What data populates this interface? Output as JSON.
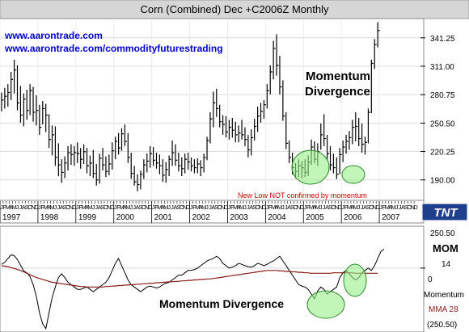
{
  "chart_data": [
    {
      "type": "ohlc",
      "title": "Corn (Combined) Dec +C2006Z Monthly",
      "xlabel": "",
      "ylabel": "",
      "x_year_labels": [
        "1997",
        "1998",
        "1999",
        "2000",
        "2001",
        "2002",
        "2003",
        "2004",
        "2005",
        "2006",
        "2007"
      ],
      "month_initials": [
        "J",
        "F",
        "M",
        "A",
        "M",
        "J",
        "J",
        "A",
        "S",
        "O",
        "N",
        "D"
      ],
      "ylim": [
        170,
        360
      ],
      "y_ticks": [
        "341.25",
        "311.00",
        "280.75",
        "250.50",
        "220.25",
        "190.00"
      ],
      "grid": true,
      "watermarks": [
        "www.aarontrade.com",
        "www.aarontrade.com/commodityfuturestrading"
      ],
      "annotations": {
        "divergence": [
          "Momentum",
          "Divergence"
        ],
        "new_low_note": "New Low NOT confirmed by momentum"
      },
      "logo": "TNT",
      "bars": [
        {
          "x": "1997-01",
          "h": 283,
          "l": 263,
          "c": 275
        },
        {
          "x": "1997-02",
          "h": 288,
          "l": 266,
          "c": 279
        },
        {
          "x": "1997-03",
          "h": 292,
          "l": 268,
          "c": 283
        },
        {
          "x": "1997-04",
          "h": 305,
          "l": 275,
          "c": 297
        },
        {
          "x": "1997-05",
          "h": 318,
          "l": 282,
          "c": 307
        },
        {
          "x": "1997-06",
          "h": 312,
          "l": 264,
          "c": 272
        },
        {
          "x": "1997-07",
          "h": 290,
          "l": 251,
          "c": 259
        },
        {
          "x": "1997-08",
          "h": 282,
          "l": 247,
          "c": 276
        },
        {
          "x": "1997-09",
          "h": 286,
          "l": 254,
          "c": 264
        },
        {
          "x": "1997-10",
          "h": 292,
          "l": 259,
          "c": 285
        },
        {
          "x": "1997-11",
          "h": 289,
          "l": 252,
          "c": 262
        },
        {
          "x": "1997-12",
          "h": 280,
          "l": 248,
          "c": 264
        },
        {
          "x": "1998-01",
          "h": 270,
          "l": 238,
          "c": 246
        },
        {
          "x": "1998-02",
          "h": 274,
          "l": 249,
          "c": 266
        },
        {
          "x": "1998-03",
          "h": 271,
          "l": 241,
          "c": 259
        },
        {
          "x": "1998-04",
          "h": 260,
          "l": 224,
          "c": 233
        },
        {
          "x": "1998-05",
          "h": 248,
          "l": 216,
          "c": 238
        },
        {
          "x": "1998-06",
          "h": 247,
          "l": 205,
          "c": 214
        },
        {
          "x": "1998-07",
          "h": 229,
          "l": 194,
          "c": 206
        },
        {
          "x": "1998-08",
          "h": 212,
          "l": 187,
          "c": 198
        },
        {
          "x": "1998-09",
          "h": 215,
          "l": 192,
          "c": 208
        },
        {
          "x": "1998-10",
          "h": 226,
          "l": 200,
          "c": 219
        },
        {
          "x": "1998-11",
          "h": 228,
          "l": 206,
          "c": 217
        },
        {
          "x": "1998-12",
          "h": 226,
          "l": 205,
          "c": 219
        },
        {
          "x": "1999-01",
          "h": 230,
          "l": 208,
          "c": 218
        },
        {
          "x": "1999-02",
          "h": 224,
          "l": 202,
          "c": 212
        },
        {
          "x": "1999-03",
          "h": 228,
          "l": 207,
          "c": 220
        },
        {
          "x": "1999-04",
          "h": 224,
          "l": 197,
          "c": 205
        },
        {
          "x": "1999-05",
          "h": 216,
          "l": 194,
          "c": 208
        },
        {
          "x": "1999-06",
          "h": 222,
          "l": 192,
          "c": 197
        },
        {
          "x": "1999-07",
          "h": 207,
          "l": 184,
          "c": 190
        },
        {
          "x": "1999-08",
          "h": 218,
          "l": 186,
          "c": 213
        },
        {
          "x": "1999-09",
          "h": 224,
          "l": 200,
          "c": 206
        },
        {
          "x": "1999-10",
          "h": 215,
          "l": 193,
          "c": 199
        },
        {
          "x": "1999-11",
          "h": 217,
          "l": 195,
          "c": 207
        },
        {
          "x": "1999-12",
          "h": 230,
          "l": 201,
          "c": 221
        },
        {
          "x": "2000-01",
          "h": 236,
          "l": 212,
          "c": 231
        },
        {
          "x": "2000-02",
          "h": 240,
          "l": 217,
          "c": 224
        },
        {
          "x": "2000-03",
          "h": 245,
          "l": 221,
          "c": 239
        },
        {
          "x": "2000-04",
          "h": 249,
          "l": 226,
          "c": 231
        },
        {
          "x": "2000-05",
          "h": 240,
          "l": 208,
          "c": 214
        },
        {
          "x": "2000-06",
          "h": 219,
          "l": 191,
          "c": 197
        },
        {
          "x": "2000-07",
          "h": 205,
          "l": 184,
          "c": 188
        },
        {
          "x": "2000-08",
          "h": 196,
          "l": 178,
          "c": 185
        },
        {
          "x": "2000-09",
          "h": 200,
          "l": 180,
          "c": 196
        },
        {
          "x": "2000-10",
          "h": 212,
          "l": 191,
          "c": 206
        },
        {
          "x": "2000-11",
          "h": 218,
          "l": 198,
          "c": 210
        },
        {
          "x": "2000-12",
          "h": 226,
          "l": 203,
          "c": 218
        },
        {
          "x": "2001-01",
          "h": 225,
          "l": 205,
          "c": 211
        },
        {
          "x": "2001-02",
          "h": 219,
          "l": 202,
          "c": 208
        },
        {
          "x": "2001-03",
          "h": 217,
          "l": 196,
          "c": 205
        },
        {
          "x": "2001-04",
          "h": 212,
          "l": 188,
          "c": 195
        },
        {
          "x": "2001-05",
          "h": 209,
          "l": 187,
          "c": 201
        },
        {
          "x": "2001-06",
          "h": 216,
          "l": 194,
          "c": 212
        },
        {
          "x": "2001-07",
          "h": 232,
          "l": 205,
          "c": 219
        },
        {
          "x": "2001-08",
          "h": 228,
          "l": 205,
          "c": 211
        },
        {
          "x": "2001-09",
          "h": 219,
          "l": 199,
          "c": 205
        },
        {
          "x": "2001-10",
          "h": 214,
          "l": 194,
          "c": 202
        },
        {
          "x": "2001-11",
          "h": 218,
          "l": 197,
          "c": 212
        },
        {
          "x": "2001-12",
          "h": 219,
          "l": 201,
          "c": 209
        },
        {
          "x": "2002-01",
          "h": 214,
          "l": 199,
          "c": 205
        },
        {
          "x": "2002-02",
          "h": 212,
          "l": 197,
          "c": 203
        },
        {
          "x": "2002-03",
          "h": 213,
          "l": 197,
          "c": 207
        },
        {
          "x": "2002-04",
          "h": 211,
          "l": 194,
          "c": 203
        },
        {
          "x": "2002-05",
          "h": 218,
          "l": 198,
          "c": 214
        },
        {
          "x": "2002-06",
          "h": 236,
          "l": 211,
          "c": 232
        },
        {
          "x": "2002-07",
          "h": 262,
          "l": 229,
          "c": 255
        },
        {
          "x": "2002-08",
          "h": 284,
          "l": 246,
          "c": 272
        },
        {
          "x": "2002-09",
          "h": 287,
          "l": 257,
          "c": 266
        },
        {
          "x": "2002-10",
          "h": 270,
          "l": 246,
          "c": 252
        },
        {
          "x": "2002-11",
          "h": 259,
          "l": 238,
          "c": 249
        },
        {
          "x": "2002-12",
          "h": 258,
          "l": 235,
          "c": 241
        },
        {
          "x": "2003-01",
          "h": 254,
          "l": 233,
          "c": 246
        },
        {
          "x": "2003-02",
          "h": 256,
          "l": 235,
          "c": 243
        },
        {
          "x": "2003-03",
          "h": 252,
          "l": 230,
          "c": 238
        },
        {
          "x": "2003-04",
          "h": 248,
          "l": 230,
          "c": 240
        },
        {
          "x": "2003-05",
          "h": 254,
          "l": 233,
          "c": 238
        },
        {
          "x": "2003-06",
          "h": 246,
          "l": 226,
          "c": 233
        },
        {
          "x": "2003-07",
          "h": 238,
          "l": 214,
          "c": 222
        },
        {
          "x": "2003-08",
          "h": 244,
          "l": 216,
          "c": 235
        },
        {
          "x": "2003-09",
          "h": 255,
          "l": 232,
          "c": 247
        },
        {
          "x": "2003-10",
          "h": 268,
          "l": 241,
          "c": 258
        },
        {
          "x": "2003-11",
          "h": 272,
          "l": 251,
          "c": 263
        },
        {
          "x": "2003-12",
          "h": 275,
          "l": 255,
          "c": 270
        },
        {
          "x": "2004-01",
          "h": 292,
          "l": 266,
          "c": 285
        },
        {
          "x": "2004-02",
          "h": 312,
          "l": 281,
          "c": 305
        },
        {
          "x": "2004-03",
          "h": 338,
          "l": 297,
          "c": 330
        },
        {
          "x": "2004-04",
          "h": 345,
          "l": 301,
          "c": 312
        },
        {
          "x": "2004-05",
          "h": 322,
          "l": 281,
          "c": 289
        },
        {
          "x": "2004-06",
          "h": 296,
          "l": 253,
          "c": 258
        },
        {
          "x": "2004-07",
          "h": 262,
          "l": 223,
          "c": 229
        },
        {
          "x": "2004-08",
          "h": 232,
          "l": 208,
          "c": 214
        },
        {
          "x": "2004-09",
          "h": 219,
          "l": 196,
          "c": 203
        },
        {
          "x": "2004-10",
          "h": 208,
          "l": 192,
          "c": 199
        },
        {
          "x": "2004-11",
          "h": 212,
          "l": 193,
          "c": 205
        },
        {
          "x": "2004-12",
          "h": 210,
          "l": 192,
          "c": 203
        },
        {
          "x": "2005-01",
          "h": 212,
          "l": 193,
          "c": 198
        },
        {
          "x": "2005-02",
          "h": 216,
          "l": 194,
          "c": 209
        },
        {
          "x": "2005-03",
          "h": 233,
          "l": 206,
          "c": 225
        },
        {
          "x": "2005-04",
          "h": 231,
          "l": 208,
          "c": 212
        },
        {
          "x": "2005-05",
          "h": 229,
          "l": 205,
          "c": 220
        },
        {
          "x": "2005-06",
          "h": 250,
          "l": 222,
          "c": 238
        },
        {
          "x": "2005-07",
          "h": 260,
          "l": 226,
          "c": 234
        },
        {
          "x": "2005-08",
          "h": 238,
          "l": 211,
          "c": 218
        },
        {
          "x": "2005-09",
          "h": 226,
          "l": 200,
          "c": 206
        },
        {
          "x": "2005-10",
          "h": 218,
          "l": 197,
          "c": 203
        },
        {
          "x": "2005-11",
          "h": 214,
          "l": 191,
          "c": 196
        },
        {
          "x": "2005-12",
          "h": 224,
          "l": 196,
          "c": 217
        },
        {
          "x": "2006-01",
          "h": 232,
          "l": 209,
          "c": 225
        },
        {
          "x": "2006-02",
          "h": 238,
          "l": 218,
          "c": 231
        },
        {
          "x": "2006-03",
          "h": 242,
          "l": 222,
          "c": 235
        },
        {
          "x": "2006-04",
          "h": 254,
          "l": 228,
          "c": 246
        },
        {
          "x": "2006-05",
          "h": 262,
          "l": 231,
          "c": 247
        },
        {
          "x": "2006-06",
          "h": 256,
          "l": 226,
          "c": 234
        },
        {
          "x": "2006-07",
          "h": 250,
          "l": 219,
          "c": 228
        },
        {
          "x": "2006-08",
          "h": 236,
          "l": 217,
          "c": 230
        },
        {
          "x": "2006-09",
          "h": 266,
          "l": 229,
          "c": 262
        },
        {
          "x": "2006-10",
          "h": 318,
          "l": 261,
          "c": 314
        },
        {
          "x": "2006-11",
          "h": 340,
          "l": 308,
          "c": 334
        },
        {
          "x": "2006-12",
          "h": 358,
          "l": 331,
          "c": 349
        }
      ]
    },
    {
      "type": "line",
      "legend": [
        "MOM",
        "14",
        "Momentum",
        "MMA 28"
      ],
      "ylim": [
        -130,
        80
      ],
      "y_ticks": [
        "250.50",
        "0",
        "(250.50)"
      ],
      "annotation": "Momentum Divergence",
      "colors": {
        "momentum": "#000000",
        "mma": "#8b1a1a"
      },
      "series": [
        {
          "name": "Momentum",
          "x_start": "1997-01",
          "x_step": "1 month",
          "values": [
            8,
            12,
            20,
            28,
            26,
            18,
            6,
            -6,
            -10,
            -18,
            -35,
            -60,
            -95,
            -118,
            -128,
            -95,
            -62,
            -40,
            -20,
            -12,
            -20,
            -30,
            -35,
            -40,
            -45,
            -45,
            -42,
            -40,
            -45,
            -50,
            -45,
            -40,
            -35,
            -30,
            -20,
            -5,
            10,
            20,
            5,
            -10,
            -25,
            -35,
            -40,
            -45,
            -50,
            -45,
            -40,
            -38,
            -40,
            -42,
            -40,
            -35,
            -32,
            -30,
            -25,
            -20,
            -15,
            -15,
            -10,
            -5,
            -5,
            -3,
            0,
            5,
            10,
            15,
            18,
            20,
            25,
            20,
            10,
            5,
            0,
            2,
            5,
            10,
            8,
            5,
            3,
            2,
            5,
            10,
            8,
            5,
            8,
            12,
            15,
            20,
            25,
            15,
            5,
            -5,
            -15,
            -25,
            -35,
            -38,
            -40,
            -45,
            -55,
            -65,
            -48,
            -40,
            -45,
            -55,
            -50,
            -45,
            -40,
            -20,
            -10,
            -5,
            -12,
            -20,
            -25,
            -20,
            -10,
            -5,
            0,
            -5,
            5,
            20,
            35,
            40
          ]
        },
        {
          "name": "MMA 28",
          "x_start": "1997-01",
          "x_step": "1 month",
          "values": [
            5,
            4,
            3,
            1,
            -1,
            -3,
            -5,
            -8,
            -11,
            -14,
            -17,
            -20,
            -22,
            -24,
            -26,
            -28,
            -30,
            -31,
            -32,
            -33,
            -34,
            -35,
            -36,
            -37,
            -38,
            -39,
            -39,
            -40,
            -40,
            -40,
            -40,
            -40,
            -40,
            -39,
            -39,
            -38,
            -38,
            -37,
            -37,
            -36,
            -36,
            -35,
            -35,
            -34,
            -34,
            -33,
            -33,
            -32,
            -32,
            -31,
            -31,
            -30,
            -30,
            -29,
            -29,
            -28,
            -28,
            -27,
            -27,
            -26,
            -26,
            -25,
            -25,
            -24,
            -24,
            -23,
            -23,
            -22,
            -21,
            -20,
            -19,
            -18,
            -17,
            -16,
            -15,
            -14,
            -13,
            -12,
            -11,
            -10,
            -9,
            -8,
            -7,
            -6,
            -5,
            -5,
            -5,
            -5,
            -6,
            -6,
            -7,
            -7,
            -8,
            -8,
            -9,
            -9,
            -10,
            -10,
            -11,
            -11,
            -11,
            -11,
            -11,
            -11,
            -11,
            -10,
            -10,
            -10,
            -10,
            -10,
            -10,
            -10,
            -11,
            -11,
            -11,
            -11,
            -11,
            -11,
            -11,
            -11
          ]
        }
      ]
    }
  ]
}
